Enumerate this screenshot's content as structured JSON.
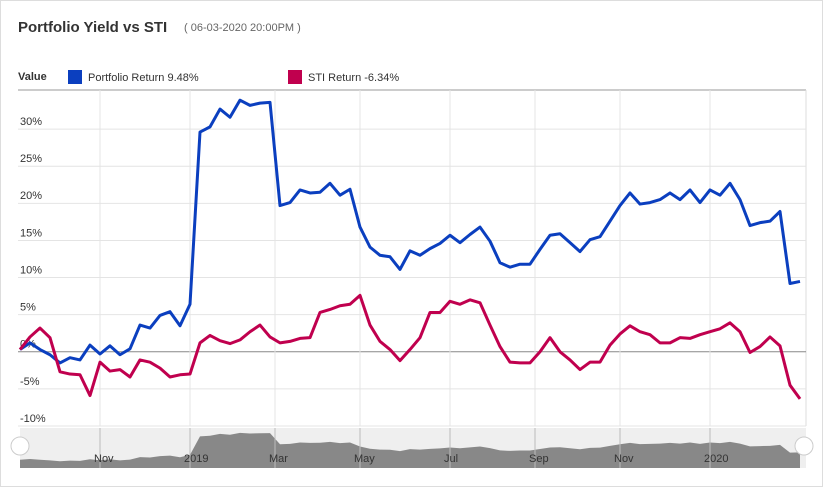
{
  "chart_data": {
    "type": "line",
    "title": "Portfolio Yield vs STI",
    "subtitle": "( 06-03-2020 20:00PM )",
    "legend_title": "Value",
    "categories": [
      null,
      null,
      null,
      null,
      null,
      null,
      null,
      null,
      null,
      null,
      null,
      null,
      null,
      null,
      null,
      null,
      null,
      null,
      null,
      null,
      null,
      null,
      null,
      null,
      null,
      null,
      null,
      null,
      null,
      null,
      null,
      null,
      null,
      null,
      null,
      null,
      null,
      null,
      null,
      null,
      null,
      null,
      null,
      null,
      null,
      null,
      null,
      null,
      null,
      null,
      null,
      null,
      null,
      null,
      null,
      null,
      null,
      null,
      null,
      null,
      null,
      null,
      null,
      null,
      null,
      null,
      null,
      null,
      null,
      null,
      null,
      null,
      null,
      null,
      null,
      null,
      null,
      null,
      null
    ],
    "series": [
      {
        "name": "Portfolio Return 9.48%",
        "color": "#0b3fbf",
        "values": [
          0.3,
          1.2,
          0.3,
          -0.4,
          -1.5,
          -0.8,
          -1.1,
          0.9,
          -0.3,
          0.8,
          -0.4,
          0.4,
          3.6,
          3.2,
          4.9,
          5.4,
          3.5,
          6.4,
          29.6,
          30.3,
          32.7,
          31.6,
          33.9,
          33.2,
          33.5,
          33.6,
          19.7,
          20.1,
          21.8,
          21.4,
          21.5,
          22.7,
          21.1,
          21.9,
          16.8,
          14.1,
          13.0,
          12.8,
          11.1,
          13.6,
          13.0,
          13.9,
          14.6,
          15.7,
          14.7,
          15.8,
          16.8,
          14.9,
          12.0,
          11.4,
          11.8,
          11.8,
          13.8,
          15.7,
          15.9,
          14.7,
          13.5,
          15.1,
          15.5,
          17.6,
          19.7,
          21.4,
          19.9,
          20.1,
          20.5,
          21.4,
          20.5,
          21.8,
          20.1,
          21.8,
          21.1,
          22.7,
          20.5,
          17.0,
          17.4,
          17.6,
          18.9,
          9.2,
          9.48
        ]
      },
      {
        "name": "STI Return -6.34%",
        "color": "#c0004e",
        "values": [
          0.3,
          2.0,
          3.2,
          1.9,
          -2.7,
          -3.0,
          -3.1,
          -5.9,
          -1.4,
          -2.6,
          -2.4,
          -3.4,
          -1.1,
          -1.4,
          -2.2,
          -3.4,
          -3.1,
          -3.0,
          1.2,
          2.2,
          1.5,
          1.1,
          1.6,
          2.7,
          3.6,
          2.0,
          1.2,
          1.4,
          1.8,
          1.9,
          5.3,
          5.7,
          6.2,
          6.4,
          7.6,
          3.6,
          1.4,
          0.3,
          -1.2,
          0.3,
          1.9,
          5.3,
          5.3,
          6.8,
          6.4,
          7.0,
          6.6,
          3.6,
          0.7,
          -1.4,
          -1.5,
          -1.5,
          0.0,
          1.9,
          0.0,
          -1.1,
          -2.4,
          -1.4,
          -1.4,
          0.9,
          2.4,
          3.5,
          2.7,
          2.3,
          1.2,
          1.2,
          1.9,
          1.8,
          2.3,
          2.7,
          3.1,
          3.9,
          2.7,
          -0.1,
          0.7,
          2.0,
          0.8,
          -4.5,
          -6.34
        ]
      }
    ],
    "ylim": [
      -10,
      35
    ],
    "yticks": [
      {
        "value": -10,
        "label": "-10%"
      },
      {
        "value": -5,
        "label": "-5%"
      },
      {
        "value": 0,
        "label": "0%"
      },
      {
        "value": 5,
        "label": "5%"
      },
      {
        "value": 10,
        "label": "10%"
      },
      {
        "value": 15,
        "label": "15%"
      },
      {
        "value": 20,
        "label": "20%"
      },
      {
        "value": 25,
        "label": "25%"
      },
      {
        "value": 30,
        "label": "30%"
      }
    ],
    "xticks": [
      {
        "value": 8,
        "label": "Nov"
      },
      {
        "value": 17,
        "label": "2019"
      },
      {
        "value": 25.5,
        "label": "Mar"
      },
      {
        "value": 34,
        "label": "May"
      },
      {
        "value": 43,
        "label": "Jul"
      },
      {
        "value": 51.5,
        "label": "Sep"
      },
      {
        "value": 60,
        "label": "Nov"
      },
      {
        "value": 69,
        "label": "2020"
      }
    ],
    "grid": true
  }
}
